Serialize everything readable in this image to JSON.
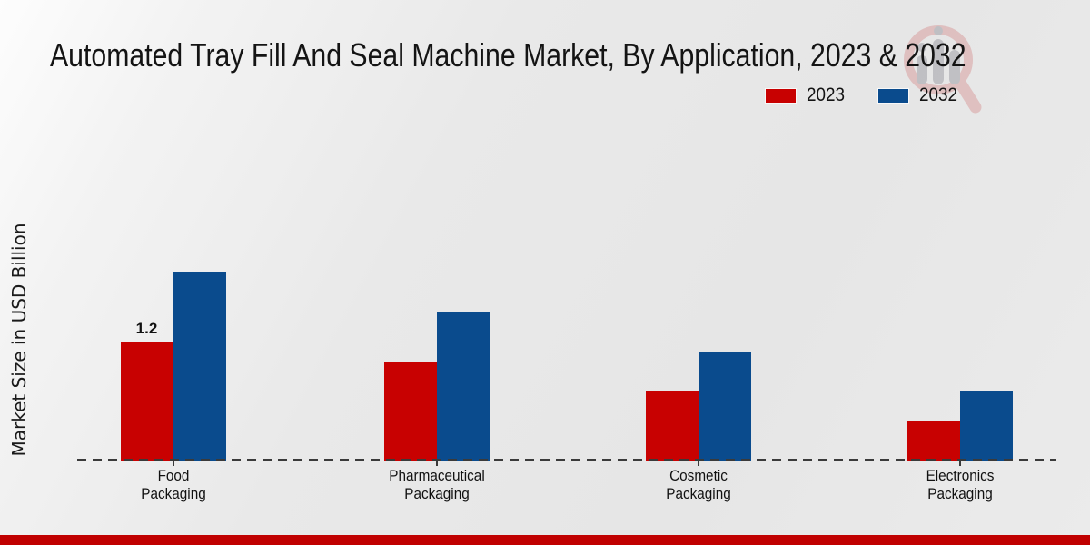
{
  "title": "Automated Tray Fill And Seal Machine Market, By Application, 2023 & 2032",
  "ylabel": "Market Size in USD Billion",
  "legend": {
    "items": [
      {
        "label": "2023",
        "color": "#c80101"
      },
      {
        "label": "2032",
        "color": "#0a4b8d"
      }
    ]
  },
  "chart_data": {
    "type": "bar",
    "categories": [
      "Food\nPackaging",
      "Pharmaceutical\nPackaging",
      "Cosmetic\nPackaging",
      "Electronics\nPackaging"
    ],
    "series": [
      {
        "name": "2023",
        "color": "#c80101",
        "values": [
          1.2,
          1.0,
          0.7,
          0.4
        ]
      },
      {
        "name": "2032",
        "color": "#0a4b8d",
        "values": [
          1.9,
          1.5,
          1.1,
          0.7
        ]
      }
    ],
    "annotations": [
      {
        "series_index": 0,
        "category_index": 0,
        "text": "1.2"
      }
    ],
    "title": "Automated Tray Fill And Seal Machine Market, By Application, 2023 & 2032",
    "xlabel": "",
    "ylabel": "Market Size in USD Billion",
    "ylim": [
      0,
      2.2
    ],
    "grid": false,
    "legend_position": "top-right",
    "baseline_style": "dashed",
    "accent_strip_color": "#c00000"
  }
}
